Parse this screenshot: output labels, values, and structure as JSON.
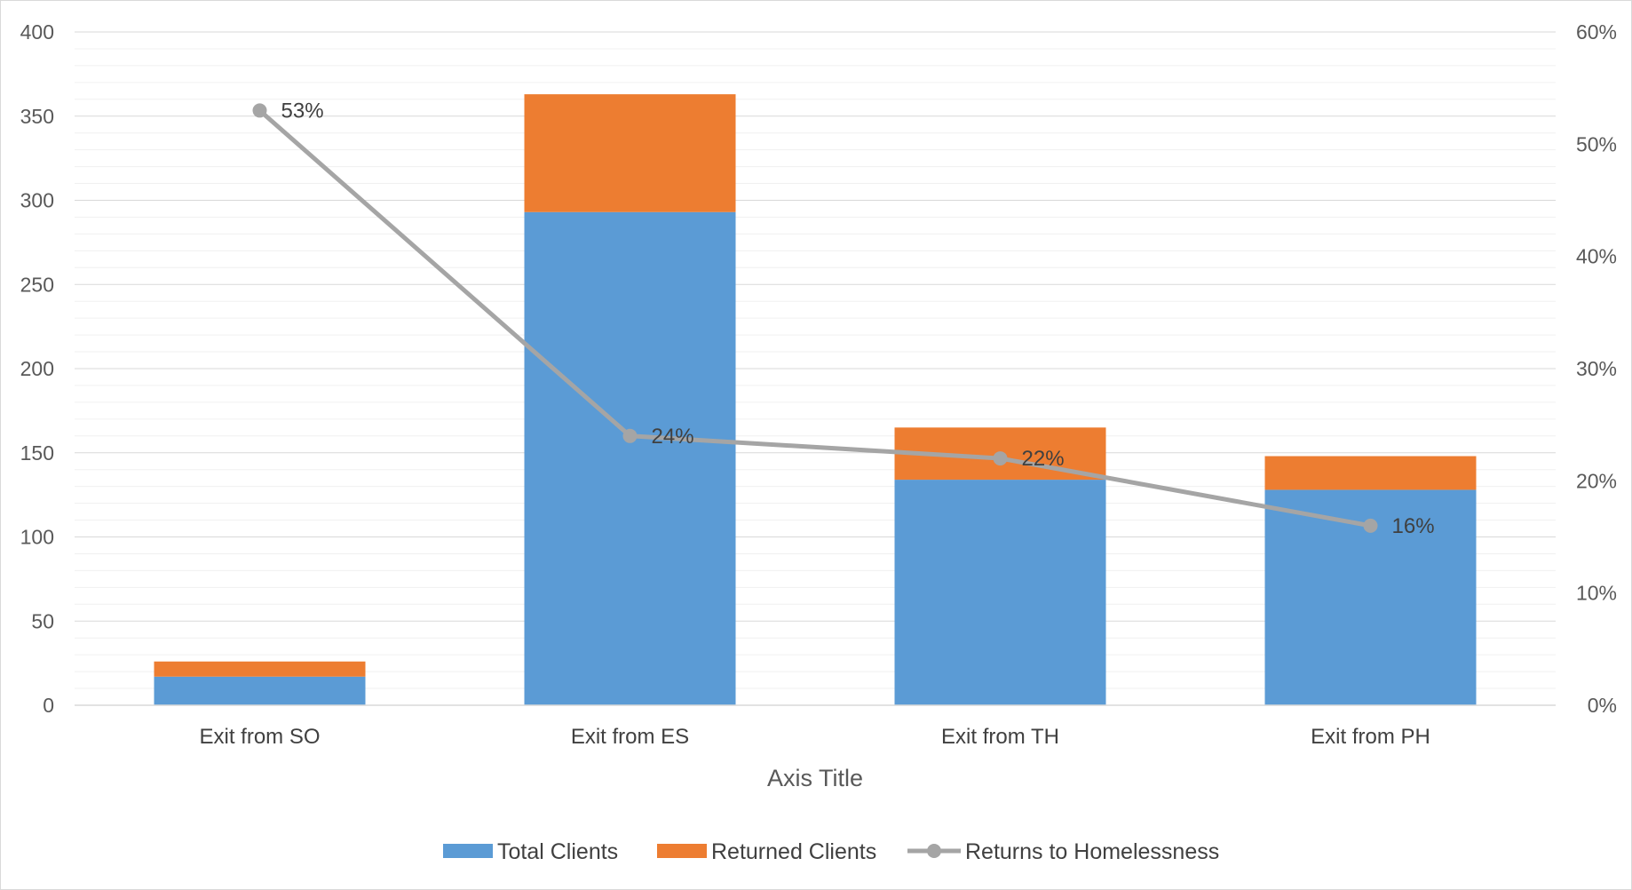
{
  "chart_data": {
    "type": "bar",
    "stacked": true,
    "categories": [
      "Exit from SO",
      "Exit from ES",
      "Exit from TH",
      "Exit from PH"
    ],
    "series": [
      {
        "name": "Total Clients",
        "kind": "bar",
        "axis": "left",
        "color": "#5B9BD5",
        "values": [
          17,
          293,
          134,
          128
        ]
      },
      {
        "name": "Returned Clients",
        "kind": "bar",
        "axis": "left",
        "color": "#ED7D31",
        "values": [
          9,
          70,
          31,
          20
        ]
      },
      {
        "name": "Returns to Homelessness",
        "kind": "line",
        "axis": "right",
        "color": "#A5A5A5",
        "values": [
          0.53,
          0.24,
          0.22,
          0.16
        ],
        "labels": [
          "53%",
          "24%",
          "22%",
          "16%"
        ]
      }
    ],
    "xlabel": "Axis Title",
    "ylim": [
      0,
      400
    ],
    "yticks": [
      "0",
      "50",
      "100",
      "150",
      "200",
      "250",
      "300",
      "350",
      "400"
    ],
    "y2lim": [
      0,
      0.6
    ],
    "y2ticks": [
      "0%",
      "10%",
      "20%",
      "30%",
      "40%",
      "50%",
      "60%"
    ],
    "grid": true,
    "legend": "bottom"
  }
}
